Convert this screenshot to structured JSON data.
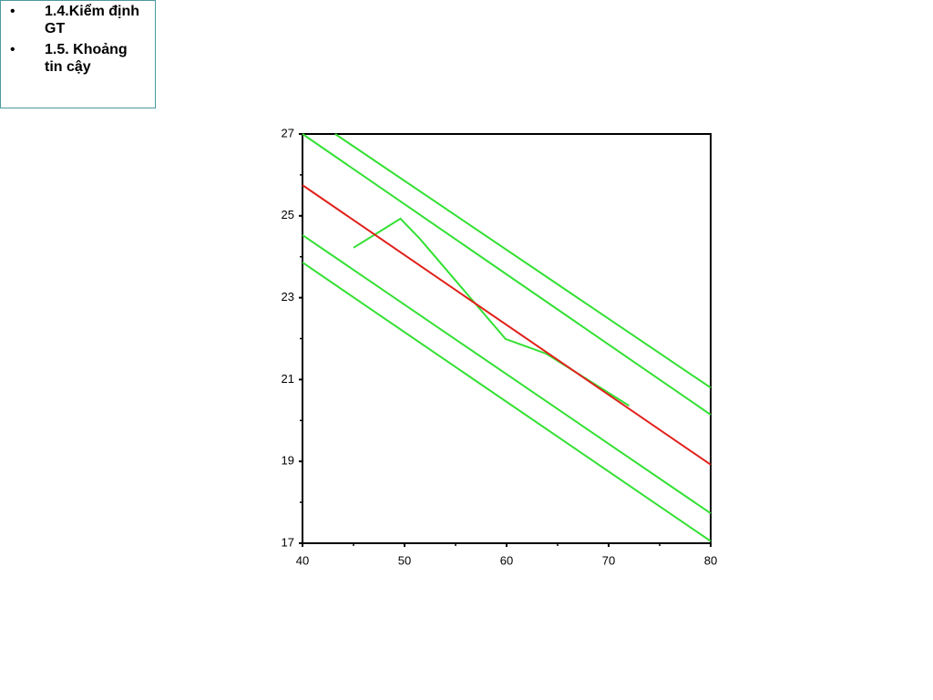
{
  "sidebar": {
    "items": [
      "1.4.Kiểm định GT",
      "1.5. Khoảng tin cậy"
    ]
  },
  "chart_data": {
    "type": "line",
    "xlim": [
      40,
      80
    ],
    "ylim": [
      17,
      27
    ],
    "xticks": [
      40,
      50,
      60,
      70,
      80
    ],
    "yticks": [
      17,
      19,
      21,
      23,
      25,
      27
    ],
    "xminorticks": [
      45,
      55,
      65,
      75
    ],
    "yminorticks": [
      18,
      20,
      22,
      24,
      26
    ],
    "series": [
      {
        "color": "#33e033",
        "x": [
          43.2,
          80
        ],
        "values": [
          27,
          20.8
        ]
      },
      {
        "color": "#33e033",
        "x": [
          40,
          80
        ],
        "values": [
          27,
          20.14
        ]
      },
      {
        "color": "#33e033",
        "x": [
          40,
          80
        ],
        "values": [
          24.53,
          17.73
        ]
      },
      {
        "color": "#33e033",
        "x": [
          40,
          80
        ],
        "values": [
          23.86,
          17.05
        ]
      },
      {
        "color": "#33e033",
        "x": [
          45,
          49.6,
          51.5,
          59.9,
          63.9,
          72
        ],
        "values": [
          24.22,
          24.93,
          24.44,
          21.99,
          21.63,
          20.36
        ]
      },
      {
        "color": "#e0201a",
        "x": [
          40,
          80
        ],
        "values": [
          25.75,
          18.92
        ]
      }
    ]
  }
}
